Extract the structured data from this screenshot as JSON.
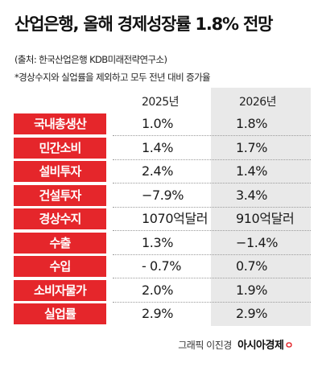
{
  "title": "산업은행, 올해 경제성장률 1.8% 전망",
  "source": "(출처: 한국산업은행 KDB미래전략연구소)",
  "note": "*경상수지와 실업률을 제외하고 모두 전년 대비 증가율",
  "columns": [
    "2025년",
    "2026년"
  ],
  "rows": [
    {
      "label": "국내총생산",
      "y2025": "1.0%",
      "y2026": "1.8%"
    },
    {
      "label": "민간소비",
      "y2025": "1.4%",
      "y2026": "1.7%"
    },
    {
      "label": "설비투자",
      "y2025": "2.4%",
      "y2026": "1.4%"
    },
    {
      "label": "건설투자",
      "y2025": "−7.9%",
      "y2026": "3.4%"
    },
    {
      "label": "경상수지",
      "y2025": "1070억달러",
      "y2026": "910억달러"
    },
    {
      "label": "수출",
      "y2025": "1.3%",
      "y2026": "−1.4%"
    },
    {
      "label": "수입",
      "y2025": "- 0.7%",
      "y2026": "0.7%"
    },
    {
      "label": "소비자물가",
      "y2025": "2.0%",
      "y2026": "1.9%"
    },
    {
      "label": "실업률",
      "y2025": "2.9%",
      "y2026": "2.9%"
    }
  ],
  "credit": {
    "graphic": "그래픽 이진경",
    "brand": "아시아경제",
    "brand_mark": "ㅇ"
  },
  "colors": {
    "label_bg": "#e5262b",
    "highlight_col": "#e9e9e9"
  }
}
